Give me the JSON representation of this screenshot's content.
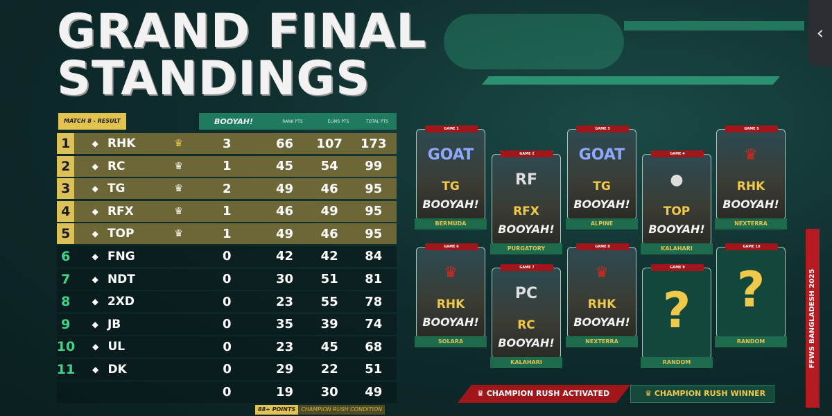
{
  "title": {
    "line1": "GRAND FINAL",
    "line2": "STANDINGS"
  },
  "table": {
    "match_label": "MATCH 8 - RESULT",
    "headers": {
      "booyah": "BOOYAH!",
      "rank_pts": "RANK PTS",
      "elims_pts": "ELIMS PTS",
      "total_pts": "TOTAL PTS"
    },
    "rows": [
      {
        "rank": "1",
        "team": "RHK",
        "crown": "gold",
        "booyah": "3",
        "rank_pts": "66",
        "elims": "107",
        "total": "173"
      },
      {
        "rank": "2",
        "team": "RC",
        "crown": "white",
        "booyah": "1",
        "rank_pts": "45",
        "elims": "54",
        "total": "99"
      },
      {
        "rank": "3",
        "team": "TG",
        "crown": "white",
        "booyah": "2",
        "rank_pts": "49",
        "elims": "46",
        "total": "95"
      },
      {
        "rank": "4",
        "team": "RFX",
        "crown": "white",
        "booyah": "1",
        "rank_pts": "46",
        "elims": "49",
        "total": "95"
      },
      {
        "rank": "5",
        "team": "TOP",
        "crown": "white",
        "booyah": "1",
        "rank_pts": "49",
        "elims": "46",
        "total": "95"
      },
      {
        "rank": "6",
        "team": "FNG",
        "booyah": "0",
        "rank_pts": "42",
        "elims": "42",
        "total": "84"
      },
      {
        "rank": "7",
        "team": "NDT",
        "booyah": "0",
        "rank_pts": "30",
        "elims": "51",
        "total": "81"
      },
      {
        "rank": "8",
        "team": "2XD",
        "booyah": "0",
        "rank_pts": "23",
        "elims": "55",
        "total": "78"
      },
      {
        "rank": "9",
        "team": "JB",
        "booyah": "0",
        "rank_pts": "35",
        "elims": "39",
        "total": "74"
      },
      {
        "rank": "10",
        "team": "UL",
        "booyah": "0",
        "rank_pts": "23",
        "elims": "45",
        "total": "68"
      },
      {
        "rank": "11",
        "team": "DK",
        "booyah": "0",
        "rank_pts": "29",
        "elims": "22",
        "total": "51"
      },
      {
        "rank": "",
        "team": "",
        "booyah": "0",
        "rank_pts": "19",
        "elims": "30",
        "total": "49"
      }
    ],
    "condition": {
      "points": "88+ POINTS",
      "label": "CHAMPION RUSH CONDITION"
    }
  },
  "games": [
    {
      "label": "GAME 1",
      "team": "TG",
      "logo": "GOAT",
      "booyah": "BOOYAH!",
      "map": "BERMUDA"
    },
    {
      "label": "GAME 2",
      "team": "RFX",
      "logo": "RF",
      "booyah": "BOOYAH!",
      "map": "PURGATORY"
    },
    {
      "label": "GAME 3",
      "team": "TG",
      "logo": "GOAT",
      "booyah": "BOOYAH!",
      "map": "ALPINE"
    },
    {
      "label": "GAME 4",
      "team": "TOP",
      "logo": "●",
      "booyah": "BOOYAH!",
      "map": "KALAHARI"
    },
    {
      "label": "GAME 5",
      "team": "RHK",
      "logo": "♛",
      "booyah": "BOOYAH!",
      "map": "NEXTERRA"
    },
    {
      "label": "GAME 6",
      "team": "RHK",
      "logo": "♛",
      "booyah": "BOOYAH!",
      "map": "SOLARA"
    },
    {
      "label": "GAME 7",
      "team": "RC",
      "logo": "PC",
      "booyah": "BOOYAH!",
      "map": "KALAHARI"
    },
    {
      "label": "GAME 8",
      "team": "RHK",
      "logo": "♛",
      "booyah": "BOOYAH!",
      "map": "NEXTERRA"
    },
    {
      "label": "GAME 9",
      "team": "?",
      "map": "RANDOM"
    },
    {
      "label": "GAME 10",
      "team": "?",
      "map": "RANDOM"
    }
  ],
  "legend": {
    "activated": "CHAMPION RUSH ACTIVATED",
    "winner": "CHAMPION RUSH WINNER"
  },
  "event_tag": "FFWS BANGLADESH 2025",
  "side_button": "‹",
  "colors": {
    "gold": "#e3c34f",
    "green": "#1f7a5f",
    "red": "#a0161b"
  }
}
